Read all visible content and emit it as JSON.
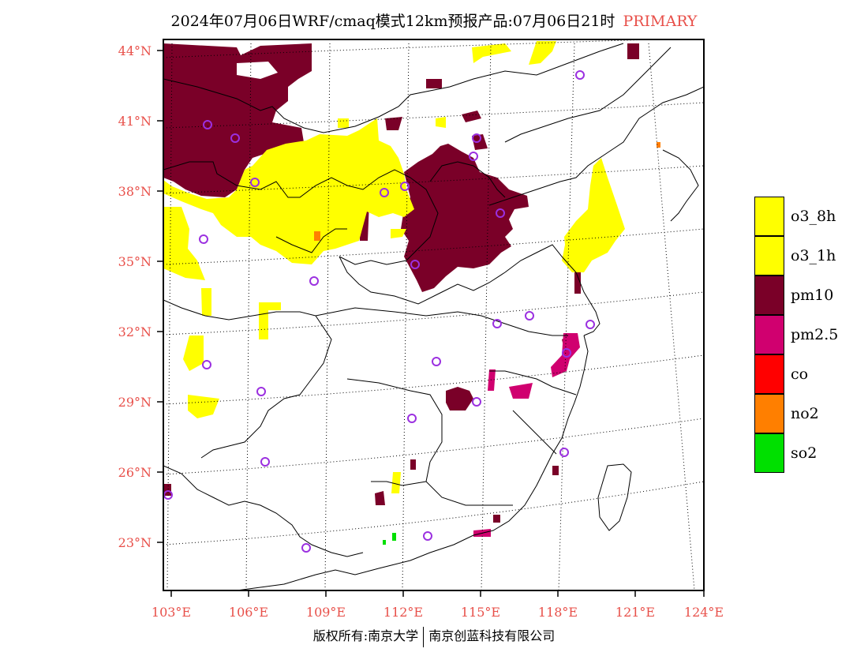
{
  "title": {
    "main": "2024年07月06日WRF/cmaq模式12km预报产品:07月06日21时",
    "tag": "PRIMARY"
  },
  "axes": {
    "latitude_labels": [
      "44°N",
      "41°N",
      "38°N",
      "35°N",
      "32°N",
      "29°N",
      "26°N",
      "23°N"
    ],
    "longitude_labels": [
      "103°E",
      "106°E",
      "109°E",
      "112°E",
      "115°E",
      "118°E",
      "121°E",
      "124°E"
    ]
  },
  "legend": {
    "items": [
      {
        "label": "o3_8h",
        "color": "#ffff00"
      },
      {
        "label": "o3_1h",
        "color": "#ffff00"
      },
      {
        "label": "pm10",
        "color": "#7a0028"
      },
      {
        "label": "pm2.5",
        "color": "#d0006f"
      },
      {
        "label": "co",
        "color": "#ff0000"
      },
      {
        "label": "no2",
        "color": "#ff7f00"
      },
      {
        "label": "so2",
        "color": "#00e000"
      }
    ]
  },
  "colors": {
    "label_red": "#e8504a",
    "station_marker": "#9b30e0",
    "border_line": "#000000",
    "grid_line": "#000000"
  },
  "stations_icon": "circle-station-marker",
  "copyright": {
    "left": "版权所有:南京大学",
    "right": "南京创蓝科技有限公司"
  }
}
